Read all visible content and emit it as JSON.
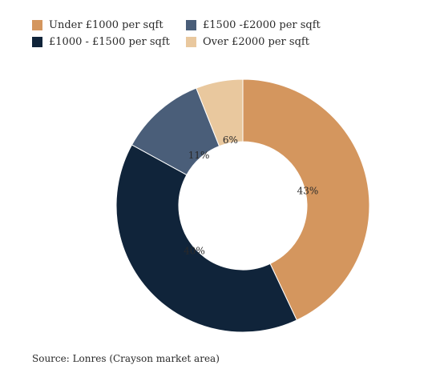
{
  "chart_data": {
    "type": "pie",
    "style": "donut",
    "legend_position": "top-left",
    "categories": [
      "Under £1000 per sqft",
      "£1000 - £1500 per sqft",
      "£1500 -£2000 per sqft",
      "Over £2000 per sqft"
    ],
    "values": [
      43,
      40,
      11,
      6
    ],
    "value_labels": [
      "43%",
      "40%",
      "11%",
      "6%"
    ],
    "colors": [
      "#d4965e",
      "#10243a",
      "#4a5e79",
      "#e9c89e"
    ],
    "source": "Source: Lonres (Crayson market area)"
  }
}
